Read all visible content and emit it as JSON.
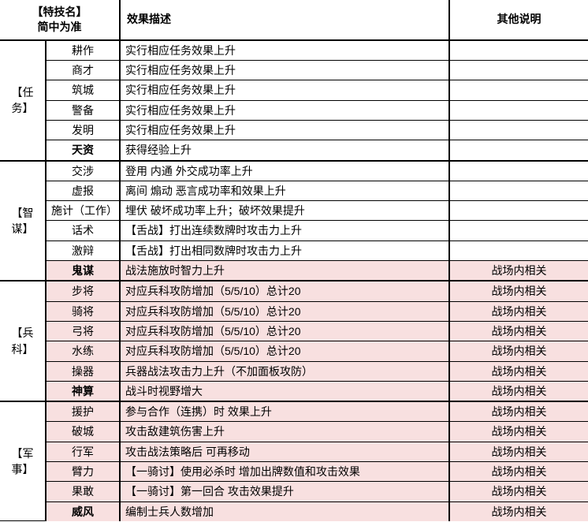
{
  "header": {
    "skill_name_line1": "【特技名】",
    "skill_name_line2": "简中为准",
    "effect": "效果描述",
    "misc": "其他说明"
  },
  "groups": [
    {
      "category": "【任务】",
      "rows": [
        {
          "name": "耕作",
          "effect": "实行相应任务效果上升",
          "misc": "",
          "bold": false,
          "hl": false
        },
        {
          "name": "商才",
          "effect": "实行相应任务效果上升",
          "misc": "",
          "bold": false,
          "hl": false
        },
        {
          "name": "筑城",
          "effect": "实行相应任务效果上升",
          "misc": "",
          "bold": false,
          "hl": false
        },
        {
          "name": "警备",
          "effect": "实行相应任务效果上升",
          "misc": "",
          "bold": false,
          "hl": false
        },
        {
          "name": "发明",
          "effect": "实行相应任务效果上升",
          "misc": "",
          "bold": false,
          "hl": false
        },
        {
          "name": "天资",
          "effect": "获得经验上升",
          "misc": "",
          "bold": true,
          "hl": false
        }
      ]
    },
    {
      "category": "【智谋】",
      "rows": [
        {
          "name": "交涉",
          "effect": "登用 内通 外交成功率上升",
          "misc": "",
          "bold": false,
          "hl": false
        },
        {
          "name": "虚报",
          "effect": "离间 煽动 恶言成功率和效果上升",
          "misc": "",
          "bold": false,
          "hl": false
        },
        {
          "name": "施计（工作）",
          "effect": "埋伏 破坏成功率上升；破坏效果提升",
          "misc": "",
          "bold": false,
          "hl": false
        },
        {
          "name": "话术",
          "effect": "【舌战】打出连续数牌时攻击力上升",
          "misc": "",
          "bold": false,
          "hl": false
        },
        {
          "name": "激辩",
          "effect": "【舌战】打出相同数牌时攻击力上升",
          "misc": "",
          "bold": false,
          "hl": false
        },
        {
          "name": "鬼谋",
          "effect": "战法施放时智力上升",
          "misc": "战场内相关",
          "bold": true,
          "hl": true
        }
      ]
    },
    {
      "category": "【兵科】",
      "rows": [
        {
          "name": "步将",
          "effect": "对应兵科攻防增加（5/5/10）总计20",
          "misc": "战场内相关",
          "bold": false,
          "hl": true
        },
        {
          "name": "骑将",
          "effect": "对应兵科攻防增加（5/5/10）总计20",
          "misc": "战场内相关",
          "bold": false,
          "hl": true
        },
        {
          "name": "弓将",
          "effect": "对应兵科攻防增加（5/5/10）总计20",
          "misc": "战场内相关",
          "bold": false,
          "hl": true
        },
        {
          "name": "水练",
          "effect": "对应兵科攻防增加（5/5/10）总计20",
          "misc": "战场内相关",
          "bold": false,
          "hl": true
        },
        {
          "name": "操器",
          "effect": "兵器战法攻击力上升（不加面板攻防）",
          "misc": "战场内相关",
          "bold": false,
          "hl": true
        },
        {
          "name": "神算",
          "effect": "战斗时视野增大",
          "misc": "战场内相关",
          "bold": true,
          "hl": true
        }
      ]
    },
    {
      "category": "【军事】",
      "rows": [
        {
          "name": "援护",
          "effect": "参与合作（连携）时 效果上升",
          "misc": "战场内相关",
          "bold": false,
          "hl": true
        },
        {
          "name": "破城",
          "effect": "攻击敌建筑伤害上升",
          "misc": "战场内相关",
          "bold": false,
          "hl": true
        },
        {
          "name": "行军",
          "effect": "攻击战法策略后 可再移动",
          "misc": "战场内相关",
          "bold": false,
          "hl": true
        },
        {
          "name": "臂力",
          "effect": "【一骑讨】使用必杀时 增加出牌数值和攻击效果",
          "misc": "战场内相关",
          "bold": false,
          "hl": true
        },
        {
          "name": "果敢",
          "effect": "【一骑讨】第一回合 攻击效果提升",
          "misc": "战场内相关",
          "bold": false,
          "hl": true
        },
        {
          "name": "威风",
          "effect": "编制士兵人数增加",
          "misc": "战场内相关",
          "bold": true,
          "hl": true
        }
      ]
    }
  ],
  "columns": {
    "cat_w": 58,
    "skill_w": 94,
    "effect_w": 418,
    "misc_w": 176
  },
  "colors": {
    "highlight": "#f8e0e0",
    "border": "#000000",
    "text": "#000000",
    "bg": "#ffffff"
  }
}
